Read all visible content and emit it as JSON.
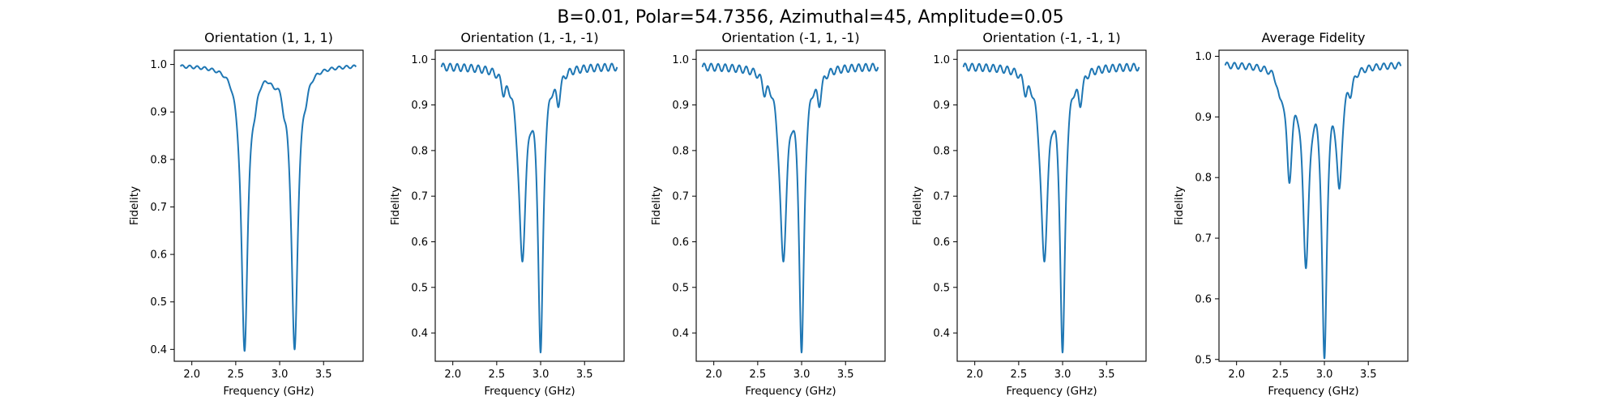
{
  "figure_title": "B=0.01, Polar=54.7356, Azimuthal=45, Amplitude=0.05",
  "chart_data": [
    {
      "type": "line",
      "title": "Orientation (1, 1, 1)",
      "xlabel": "Frequency (GHz)",
      "ylabel": "Fidelity",
      "xlim": [
        1.8,
        3.95
      ],
      "ylim": [
        0.375,
        1.03
      ],
      "xticks": [
        2.0,
        2.5,
        3.0,
        3.5
      ],
      "xtick_labels": [
        "2.0",
        "2.5",
        "3.0",
        "3.5"
      ],
      "yticks": [
        0.4,
        0.5,
        0.6,
        0.7,
        0.8,
        0.9,
        1.0
      ],
      "ytick_labels": [
        "0.4",
        "0.5",
        "0.6",
        "0.7",
        "0.8",
        "0.9",
        "1.0"
      ],
      "x_range": [
        1.87,
        3.87
      ],
      "baseline": 0.999,
      "ripple_amplitude": 0.003,
      "ripple_period": 0.085,
      "dips": [
        {
          "center": 2.6,
          "depth": 0.595,
          "width": 0.045
        },
        {
          "center": 2.72,
          "depth": 0.03,
          "width": 0.03
        },
        {
          "center": 2.93,
          "depth": 0.015,
          "width": 0.04
        },
        {
          "center": 3.05,
          "depth": 0.03,
          "width": 0.03
        },
        {
          "center": 3.17,
          "depth": 0.595,
          "width": 0.045
        },
        {
          "center": 3.3,
          "depth": 0.02,
          "width": 0.03
        }
      ],
      "color": "#1f77b4",
      "grid": false
    },
    {
      "type": "line",
      "title": "Orientation (1, -1, -1)",
      "xlabel": "Frequency (GHz)",
      "ylabel": "Fidelity",
      "xlim": [
        1.8,
        3.95
      ],
      "ylim": [
        0.338,
        1.02
      ],
      "xticks": [
        2.0,
        2.5,
        3.0,
        3.5
      ],
      "xtick_labels": [
        "2.0",
        "2.5",
        "3.0",
        "3.5"
      ],
      "yticks": [
        0.4,
        0.5,
        0.6,
        0.7,
        0.8,
        0.9,
        1.0
      ],
      "ytick_labels": [
        "0.4",
        "0.5",
        "0.6",
        "0.7",
        "0.8",
        "0.9",
        "1.0"
      ],
      "x_range": [
        1.87,
        3.87
      ],
      "baseline": 0.985,
      "ripple_amplitude": 0.008,
      "ripple_period": 0.08,
      "dips": [
        {
          "center": 2.58,
          "depth": 0.035,
          "width": 0.03
        },
        {
          "center": 2.79,
          "depth": 0.41,
          "width": 0.05
        },
        {
          "center": 3.0,
          "depth": 0.61,
          "width": 0.035
        },
        {
          "center": 3.2,
          "depth": 0.06,
          "width": 0.03
        }
      ],
      "color": "#1f77b4",
      "grid": false
    },
    {
      "type": "line",
      "title": "Orientation (-1, 1, -1)",
      "xlabel": "Frequency (GHz)",
      "ylabel": "Fidelity",
      "xlim": [
        1.8,
        3.95
      ],
      "ylim": [
        0.338,
        1.02
      ],
      "xticks": [
        2.0,
        2.5,
        3.0,
        3.5
      ],
      "xtick_labels": [
        "2.0",
        "2.5",
        "3.0",
        "3.5"
      ],
      "yticks": [
        0.4,
        0.5,
        0.6,
        0.7,
        0.8,
        0.9,
        1.0
      ],
      "ytick_labels": [
        "0.4",
        "0.5",
        "0.6",
        "0.7",
        "0.8",
        "0.9",
        "1.0"
      ],
      "x_range": [
        1.87,
        3.87
      ],
      "baseline": 0.985,
      "ripple_amplitude": 0.008,
      "ripple_period": 0.08,
      "dips": [
        {
          "center": 2.58,
          "depth": 0.035,
          "width": 0.03
        },
        {
          "center": 2.79,
          "depth": 0.41,
          "width": 0.05
        },
        {
          "center": 3.0,
          "depth": 0.61,
          "width": 0.035
        },
        {
          "center": 3.2,
          "depth": 0.06,
          "width": 0.03
        }
      ],
      "color": "#1f77b4",
      "grid": false
    },
    {
      "type": "line",
      "title": "Orientation (-1, -1, 1)",
      "xlabel": "Frequency (GHz)",
      "ylabel": "Fidelity",
      "xlim": [
        1.8,
        3.95
      ],
      "ylim": [
        0.338,
        1.02
      ],
      "xticks": [
        2.0,
        2.5,
        3.0,
        3.5
      ],
      "xtick_labels": [
        "2.0",
        "2.5",
        "3.0",
        "3.5"
      ],
      "yticks": [
        0.4,
        0.5,
        0.6,
        0.7,
        0.8,
        0.9,
        1.0
      ],
      "ytick_labels": [
        "0.4",
        "0.5",
        "0.6",
        "0.7",
        "0.8",
        "0.9",
        "1.0"
      ],
      "x_range": [
        1.87,
        3.87
      ],
      "baseline": 0.985,
      "ripple_amplitude": 0.008,
      "ripple_period": 0.08,
      "dips": [
        {
          "center": 2.58,
          "depth": 0.035,
          "width": 0.03
        },
        {
          "center": 2.79,
          "depth": 0.41,
          "width": 0.05
        },
        {
          "center": 3.0,
          "depth": 0.61,
          "width": 0.035
        },
        {
          "center": 3.2,
          "depth": 0.06,
          "width": 0.03
        }
      ],
      "color": "#1f77b4",
      "grid": false
    },
    {
      "type": "line",
      "title": "Average Fidelity",
      "xlabel": "Frequency (GHz)",
      "ylabel": "Fidelity",
      "xlim": [
        1.8,
        3.95
      ],
      "ylim": [
        0.497,
        1.01
      ],
      "xticks": [
        2.0,
        2.5,
        3.0,
        3.5
      ],
      "xtick_labels": [
        "2.0",
        "2.5",
        "3.0",
        "3.5"
      ],
      "yticks": [
        0.5,
        0.6,
        0.7,
        0.8,
        0.9,
        1.0
      ],
      "ytick_labels": [
        "0.5",
        "0.6",
        "0.7",
        "0.8",
        "0.9",
        "1.0"
      ],
      "x_range": [
        1.87,
        3.87
      ],
      "baseline": 0.987,
      "ripple_amplitude": 0.005,
      "ripple_period": 0.085,
      "dips": [
        {
          "center": 2.49,
          "depth": 0.03,
          "width": 0.03
        },
        {
          "center": 2.6,
          "depth": 0.17,
          "width": 0.04
        },
        {
          "center": 2.79,
          "depth": 0.31,
          "width": 0.045
        },
        {
          "center": 3.0,
          "depth": 0.465,
          "width": 0.035
        },
        {
          "center": 3.17,
          "depth": 0.185,
          "width": 0.04
        },
        {
          "center": 3.3,
          "depth": 0.025,
          "width": 0.03
        }
      ],
      "color": "#1f77b4",
      "grid": false
    }
  ]
}
